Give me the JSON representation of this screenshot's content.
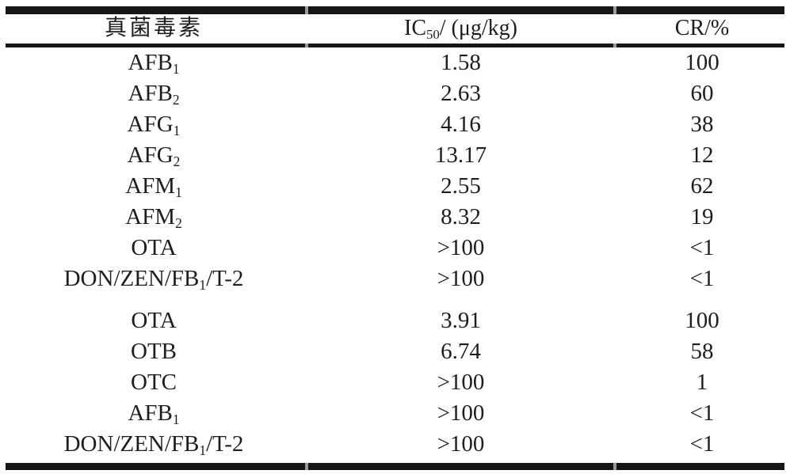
{
  "page": {
    "background": "#ffffff",
    "text_color": "#1e1e1e",
    "rule_color": "#161616",
    "notch_color": "#9a9a9a"
  },
  "table": {
    "header": {
      "toxin_col": "真菌毒素",
      "ic50_col": {
        "base": "IC",
        "sub": "50",
        "suffix": "/ (μg/kg)"
      },
      "cr_col": "CR/%"
    },
    "section_break_after_row": 7,
    "rows": [
      {
        "name": {
          "base": "AFB",
          "sub": "1",
          "suffix": ""
        },
        "ic50": "1.58",
        "cr": "100"
      },
      {
        "name": {
          "base": "AFB",
          "sub": "2",
          "suffix": ""
        },
        "ic50": "2.63",
        "cr": "60"
      },
      {
        "name": {
          "base": "AFG",
          "sub": "1",
          "suffix": ""
        },
        "ic50": "4.16",
        "cr": "38"
      },
      {
        "name": {
          "base": "AFG",
          "sub": "2",
          "suffix": ""
        },
        "ic50": "13.17",
        "cr": "12"
      },
      {
        "name": {
          "base": "AFM",
          "sub": "1",
          "suffix": ""
        },
        "ic50": "2.55",
        "cr": "62"
      },
      {
        "name": {
          "base": "AFM",
          "sub": "2",
          "suffix": ""
        },
        "ic50": "8.32",
        "cr": "19"
      },
      {
        "name": {
          "base": "OTA",
          "sub": "",
          "suffix": ""
        },
        "ic50": ">100",
        "cr": "<1"
      },
      {
        "name": {
          "base": "DON/ZEN/FB",
          "sub": "1",
          "suffix": "/T-2"
        },
        "ic50": ">100",
        "cr": "<1"
      },
      {
        "name": {
          "base": "OTA",
          "sub": "",
          "suffix": ""
        },
        "ic50": "3.91",
        "cr": "100"
      },
      {
        "name": {
          "base": "OTB",
          "sub": "",
          "suffix": ""
        },
        "ic50": "6.74",
        "cr": "58"
      },
      {
        "name": {
          "base": "OTC",
          "sub": "",
          "suffix": ""
        },
        "ic50": ">100",
        "cr": "1"
      },
      {
        "name": {
          "base": "AFB",
          "sub": "1",
          "suffix": ""
        },
        "ic50": ">100",
        "cr": "<1"
      },
      {
        "name": {
          "base": "DON/ZEN/FB",
          "sub": "1",
          "suffix": "/T-2"
        },
        "ic50": ">100",
        "cr": "<1"
      }
    ]
  }
}
